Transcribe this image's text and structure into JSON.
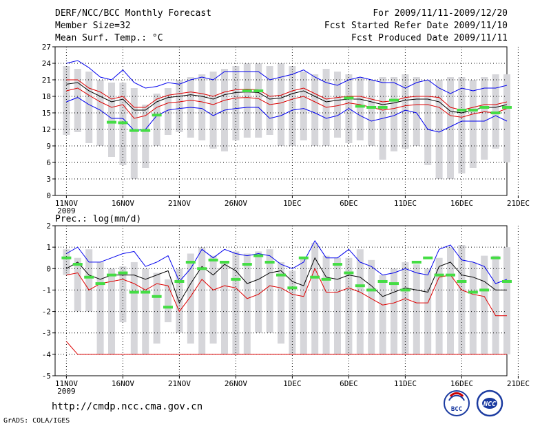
{
  "header": {
    "title": "DERF/NCC/BCC Monthly Forecast",
    "member_size": "Member Size=32",
    "variable": "Mean Surf. Temp.: °C",
    "period": "For 2009/11/11-2009/12/20",
    "started": "Fcst Started Refer Date 2009/11/10",
    "produced": "Fcst Produced Date 2009/11/11"
  },
  "footer": {
    "url": "http://cmdp.ncc.cma.gov.cn",
    "grads": "GrADS: COLA/IGES",
    "logo_bcc": "BCC",
    "logo_ncc": "NCC"
  },
  "colors": {
    "max_min": "#0000ee",
    "quartile": "#dd0000",
    "median": "#000000",
    "observed": "#44dd44",
    "range_bar": "#d6d6da",
    "grid": "#000000"
  },
  "chart_data": [
    {
      "type": "line",
      "title": "Mean Surf. Temp.: °C",
      "x_tick_labels": [
        "11NOV",
        "16NOV",
        "21NOV",
        "26NOV",
        "1DEC",
        "6DEC",
        "11DEC",
        "16DEC",
        "21DEC"
      ],
      "x_year_label": "2009",
      "days": 40,
      "ylim": [
        0,
        27
      ],
      "yticks": [
        0,
        3,
        6,
        9,
        12,
        15,
        18,
        21,
        24,
        27
      ],
      "range_bars": {
        "high": [
          23.5,
          23.0,
          22.5,
          21.0,
          20.5,
          20.5,
          19.5,
          16.5,
          18.5,
          19.5,
          21.0,
          21.5,
          22.0,
          22.5,
          23.0,
          23.5,
          24.0,
          24.0,
          23.5,
          24.0,
          23.5,
          22.5,
          22.0,
          23.0,
          22.5,
          22.0,
          21.5,
          21.0,
          21.5,
          21.5,
          22.0,
          21.5,
          21.0,
          21.0,
          21.5,
          21.5,
          21.0,
          21.5,
          22.0,
          22.0
        ],
        "low": [
          11.0,
          11.5,
          9.5,
          9.0,
          7.0,
          5.5,
          3.0,
          5.0,
          9.0,
          11.0,
          11.5,
          10.5,
          10.0,
          8.5,
          8.0,
          10.0,
          10.5,
          10.5,
          11.0,
          9.0,
          9.0,
          10.0,
          9.0,
          9.0,
          10.5,
          9.5,
          10.0,
          9.0,
          6.5,
          8.0,
          8.5,
          9.0,
          5.5,
          3.0,
          3.0,
          4.0,
          5.0,
          6.5,
          8.5,
          6.0
        ]
      },
      "series": [
        {
          "name": "maximum",
          "color": "#0000ee",
          "values": [
            24.0,
            24.5,
            23.2,
            21.5,
            21.0,
            22.8,
            20.5,
            19.5,
            19.8,
            20.5,
            20.2,
            21.0,
            21.5,
            21.0,
            22.5,
            22.5,
            22.5,
            22.5,
            21.0,
            21.5,
            22.0,
            22.8,
            21.5,
            20.5,
            20.0,
            21.0,
            21.5,
            21.0,
            20.5,
            20.5,
            19.5,
            20.5,
            21.0,
            19.5,
            18.5,
            19.5,
            19.0,
            19.5,
            19.5,
            20.0
          ]
        },
        {
          "name": "upper quartile",
          "color": "#dd0000",
          "values": [
            21.0,
            21.0,
            19.5,
            18.8,
            17.5,
            18.0,
            16.0,
            16.0,
            17.5,
            18.2,
            18.5,
            18.8,
            18.5,
            18.0,
            18.8,
            19.2,
            19.3,
            19.2,
            18.0,
            18.2,
            19.0,
            19.5,
            18.5,
            17.5,
            17.8,
            18.0,
            18.0,
            17.5,
            17.0,
            17.2,
            17.8,
            18.0,
            18.0,
            17.8,
            16.0,
            15.5,
            16.0,
            16.5,
            16.5,
            17.0
          ]
        },
        {
          "name": "median",
          "color": "#000000",
          "values": [
            20.2,
            20.5,
            19.0,
            18.0,
            17.0,
            17.5,
            15.5,
            15.5,
            17.0,
            17.8,
            18.0,
            18.3,
            18.0,
            17.5,
            18.3,
            18.7,
            18.8,
            18.7,
            17.5,
            17.7,
            18.5,
            19.0,
            18.0,
            17.0,
            17.3,
            17.5,
            17.5,
            17.0,
            16.5,
            16.8,
            17.3,
            17.5,
            17.5,
            17.0,
            15.3,
            15.0,
            15.5,
            16.0,
            16.0,
            16.5
          ]
        },
        {
          "name": "lower quartile",
          "color": "#dd0000",
          "values": [
            19.0,
            19.5,
            18.2,
            17.0,
            16.0,
            16.5,
            14.0,
            14.5,
            16.0,
            16.8,
            17.0,
            17.3,
            17.0,
            16.5,
            17.3,
            17.7,
            17.8,
            17.6,
            16.5,
            16.8,
            17.5,
            18.0,
            17.0,
            16.0,
            16.3,
            16.8,
            16.5,
            16.0,
            15.5,
            15.8,
            16.3,
            16.5,
            16.5,
            16.0,
            14.5,
            14.2,
            14.8,
            15.2,
            15.0,
            15.8
          ]
        },
        {
          "name": "minimum",
          "color": "#0000ee",
          "values": [
            17.0,
            17.8,
            16.5,
            15.5,
            14.0,
            14.0,
            11.8,
            12.0,
            14.5,
            15.5,
            15.8,
            16.0,
            15.8,
            14.5,
            15.5,
            15.8,
            16.0,
            16.0,
            14.0,
            14.5,
            15.5,
            15.8,
            15.0,
            14.0,
            14.5,
            15.8,
            14.5,
            13.5,
            14.0,
            14.5,
            15.5,
            15.0,
            12.0,
            11.5,
            12.5,
            13.5,
            13.5,
            13.5,
            14.5,
            13.5
          ]
        },
        {
          "name": "observed",
          "color": "#44dd44",
          "style": "dash",
          "values": [
            null,
            null,
            null,
            null,
            13.3,
            13.2,
            11.8,
            11.8,
            14.6,
            null,
            null,
            null,
            null,
            null,
            null,
            null,
            19.0,
            19.0,
            null,
            null,
            null,
            null,
            null,
            null,
            null,
            17.7,
            16.2,
            16.0,
            16.0,
            17.3,
            null,
            null,
            null,
            null,
            null,
            15.5,
            15.5,
            16.0,
            15.0,
            16.0
          ]
        }
      ]
    },
    {
      "type": "line",
      "title": "Prec.: log(mm/d)",
      "x_tick_labels": [
        "11NOV",
        "16NOV",
        "21NOV",
        "26NOV",
        "1DEC",
        "6DEC",
        "11DEC",
        "16DEC",
        "21DEC"
      ],
      "x_year_label": "2009",
      "days": 40,
      "ylim": [
        -5,
        2
      ],
      "yticks": [
        -5,
        -4,
        -3,
        -2,
        -1,
        0,
        1,
        2
      ],
      "range_bars": {
        "high": [
          0.9,
          0.5,
          0.9,
          0.3,
          0.0,
          0.1,
          0.3,
          0.0,
          -0.2,
          -0.5,
          0.0,
          0.7,
          1.0,
          0.6,
          0.3,
          0.8,
          0.7,
          0.8,
          0.9,
          0.3,
          -0.1,
          0.5,
          1.2,
          0.6,
          0.5,
          0.5,
          0.9,
          0.4,
          -0.3,
          0.0,
          0.3,
          0.2,
          0.0,
          0.5,
          1.0,
          1.1,
          0.3,
          0.6,
          0.6,
          1.0
        ],
        "low": [
          -0.3,
          -2.0,
          -2.0,
          -4.0,
          -4.0,
          -2.5,
          -4.0,
          -4.0,
          -3.5,
          -2.5,
          -3.0,
          -3.5,
          -4.0,
          -3.5,
          -4.0,
          -4.0,
          -4.0,
          -3.0,
          -3.0,
          -3.5,
          -4.0,
          -4.0,
          -4.0,
          -4.0,
          -4.0,
          -4.0,
          -4.0,
          -4.0,
          -4.0,
          -4.0,
          -4.0,
          -4.0,
          -4.0,
          -4.0,
          -4.0,
          -4.0,
          -4.0,
          -4.0,
          -4.0,
          -4.0
        ]
      },
      "series": [
        {
          "name": "maximum",
          "color": "#0000ee",
          "values": [
            0.7,
            1.0,
            0.3,
            0.3,
            0.5,
            0.7,
            0.8,
            0.1,
            0.3,
            0.6,
            -0.6,
            0.0,
            0.9,
            0.5,
            0.9,
            0.7,
            0.6,
            0.7,
            0.6,
            0.2,
            0.0,
            0.3,
            1.3,
            0.5,
            0.5,
            0.9,
            0.3,
            0.1,
            -0.3,
            -0.2,
            0.0,
            -0.2,
            -0.3,
            0.9,
            1.1,
            0.4,
            0.3,
            0.1,
            -0.7,
            -0.5
          ]
        },
        {
          "name": "median",
          "color": "#000000",
          "values": [
            0.0,
            0.3,
            -0.3,
            -0.5,
            -0.3,
            -0.3,
            -0.3,
            -0.5,
            -0.3,
            -0.1,
            -1.6,
            -0.7,
            0.1,
            -0.3,
            0.2,
            -0.1,
            -0.7,
            -0.5,
            -0.2,
            -0.1,
            -0.6,
            -0.8,
            0.5,
            -0.4,
            -0.5,
            -0.3,
            -0.4,
            -0.8,
            -1.3,
            -1.1,
            -0.9,
            -1.0,
            -1.1,
            0.1,
            0.3,
            -0.3,
            -0.4,
            -0.6,
            -1.0,
            -1.0
          ]
        },
        {
          "name": "lower quartile",
          "color": "#dd0000",
          "values": [
            -0.3,
            -0.2,
            -1.0,
            -0.7,
            -0.6,
            -0.5,
            -0.7,
            -1.0,
            -0.7,
            -0.8,
            -2.0,
            -1.3,
            -0.5,
            -1.0,
            -0.8,
            -0.9,
            -1.4,
            -1.2,
            -0.8,
            -0.9,
            -1.2,
            -1.3,
            0.0,
            -1.1,
            -1.1,
            -0.9,
            -1.1,
            -1.4,
            -1.7,
            -1.6,
            -1.4,
            -1.6,
            -1.6,
            -0.4,
            -0.3,
            -1.0,
            -1.2,
            -1.3,
            -2.2,
            -2.2
          ]
        },
        {
          "name": "minimum",
          "color": "#dd0000",
          "values": [
            -3.4,
            -4.0,
            -4.0,
            -4.0,
            -4.0,
            -4.0,
            -4.0,
            -4.0,
            -4.0,
            -4.0,
            -4.0,
            -4.0,
            -4.0,
            -4.0,
            -4.0,
            -4.0,
            -4.0,
            -4.0,
            -4.0,
            -4.0,
            -4.0,
            -4.0,
            -4.0,
            -4.0,
            -4.0,
            -4.0,
            -4.0,
            -4.0,
            -4.0,
            -4.0,
            -4.0,
            -4.0,
            -4.0,
            -4.0,
            -4.0,
            -4.0,
            -4.0,
            -4.0,
            -4.0,
            -4.0
          ]
        },
        {
          "name": "observed",
          "color": "#44dd44",
          "style": "dash",
          "values": [
            0.5,
            0.2,
            -0.4,
            -0.7,
            -0.3,
            -0.2,
            -1.1,
            -1.1,
            -1.3,
            -1.8,
            -0.6,
            0.3,
            0.0,
            0.4,
            0.3,
            -0.5,
            0.2,
            0.6,
            0.3,
            -0.3,
            -0.9,
            0.5,
            -0.4,
            -0.5,
            0.2,
            -0.2,
            -0.8,
            -1.0,
            -0.6,
            -0.7,
            -1.0,
            0.3,
            0.5,
            -0.3,
            -0.3,
            -0.6,
            -1.1,
            -1.0,
            0.5,
            -0.6
          ]
        }
      ]
    }
  ]
}
